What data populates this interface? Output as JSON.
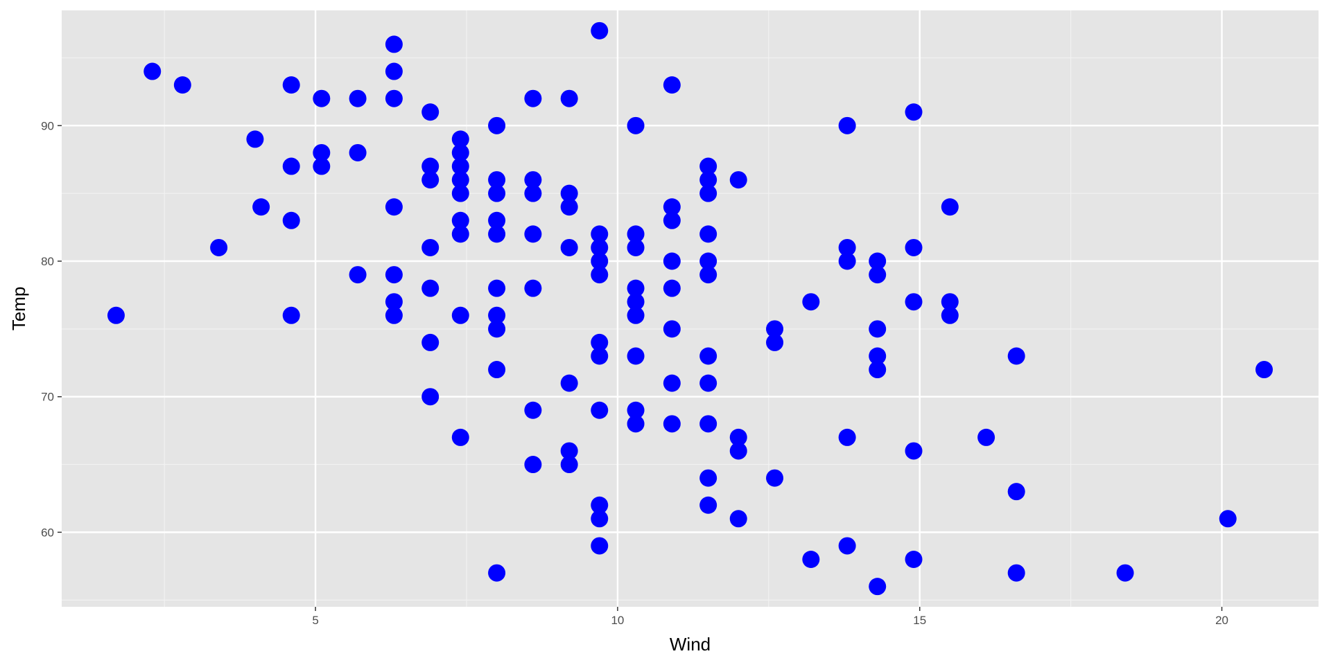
{
  "chart_data": {
    "type": "scatter",
    "title": "",
    "xlabel": "Wind",
    "ylabel": "Temp",
    "xlim": [
      0.8,
      21.6
    ],
    "ylim": [
      54.5,
      98.5
    ],
    "x_ticks": [
      5,
      10,
      15,
      20
    ],
    "y_ticks": [
      60,
      70,
      80,
      90
    ],
    "x_tick_labels": [
      "5",
      "10",
      "15",
      "20"
    ],
    "y_tick_labels": [
      "60",
      "70",
      "80",
      "90"
    ],
    "grid": true,
    "legend": "none",
    "marker_color": "#0000ff",
    "panel_background": "#e5e5e5",
    "points": [
      [
        1.7,
        76
      ],
      [
        2.3,
        94
      ],
      [
        2.8,
        93
      ],
      [
        3.4,
        81
      ],
      [
        4.0,
        89
      ],
      [
        4.1,
        84
      ],
      [
        4.6,
        93
      ],
      [
        4.6,
        87
      ],
      [
        4.6,
        83
      ],
      [
        4.6,
        76
      ],
      [
        5.1,
        92
      ],
      [
        5.1,
        88
      ],
      [
        5.1,
        87
      ],
      [
        5.7,
        92
      ],
      [
        5.7,
        88
      ],
      [
        5.7,
        79
      ],
      [
        6.3,
        96
      ],
      [
        6.3,
        94
      ],
      [
        6.3,
        92
      ],
      [
        6.3,
        84
      ],
      [
        6.3,
        79
      ],
      [
        6.3,
        77
      ],
      [
        6.3,
        76
      ],
      [
        6.9,
        91
      ],
      [
        6.9,
        87
      ],
      [
        6.9,
        86
      ],
      [
        6.9,
        81
      ],
      [
        6.9,
        78
      ],
      [
        6.9,
        74
      ],
      [
        6.9,
        70
      ],
      [
        7.4,
        89
      ],
      [
        7.4,
        88
      ],
      [
        7.4,
        87
      ],
      [
        7.4,
        86
      ],
      [
        7.4,
        85
      ],
      [
        7.4,
        83
      ],
      [
        7.4,
        82
      ],
      [
        7.4,
        76
      ],
      [
        7.4,
        67
      ],
      [
        8.0,
        90
      ],
      [
        8.0,
        86
      ],
      [
        8.0,
        85
      ],
      [
        8.0,
        83
      ],
      [
        8.0,
        82
      ],
      [
        8.0,
        78
      ],
      [
        8.0,
        76
      ],
      [
        8.0,
        75
      ],
      [
        8.0,
        72
      ],
      [
        8.0,
        57
      ],
      [
        8.6,
        92
      ],
      [
        8.6,
        86
      ],
      [
        8.6,
        85
      ],
      [
        8.6,
        82
      ],
      [
        8.6,
        78
      ],
      [
        8.6,
        69
      ],
      [
        8.6,
        65
      ],
      [
        9.2,
        92
      ],
      [
        9.2,
        85
      ],
      [
        9.2,
        84
      ],
      [
        9.2,
        81
      ],
      [
        9.2,
        71
      ],
      [
        9.2,
        66
      ],
      [
        9.2,
        65
      ],
      [
        9.7,
        97
      ],
      [
        9.7,
        82
      ],
      [
        9.7,
        81
      ],
      [
        9.7,
        80
      ],
      [
        9.7,
        79
      ],
      [
        9.7,
        74
      ],
      [
        9.7,
        73
      ],
      [
        9.7,
        69
      ],
      [
        9.7,
        62
      ],
      [
        9.7,
        61
      ],
      [
        9.7,
        59
      ],
      [
        10.3,
        90
      ],
      [
        10.3,
        82
      ],
      [
        10.3,
        81
      ],
      [
        10.3,
        78
      ],
      [
        10.3,
        77
      ],
      [
        10.3,
        76
      ],
      [
        10.3,
        73
      ],
      [
        10.3,
        69
      ],
      [
        10.3,
        68
      ],
      [
        10.9,
        93
      ],
      [
        10.9,
        84
      ],
      [
        10.9,
        83
      ],
      [
        10.9,
        80
      ],
      [
        10.9,
        78
      ],
      [
        10.9,
        75
      ],
      [
        10.9,
        71
      ],
      [
        10.9,
        68
      ],
      [
        11.5,
        87
      ],
      [
        11.5,
        86
      ],
      [
        11.5,
        85
      ],
      [
        11.5,
        82
      ],
      [
        11.5,
        80
      ],
      [
        11.5,
        79
      ],
      [
        11.5,
        73
      ],
      [
        11.5,
        71
      ],
      [
        11.5,
        68
      ],
      [
        11.5,
        64
      ],
      [
        11.5,
        62
      ],
      [
        12.0,
        86
      ],
      [
        12.0,
        67
      ],
      [
        12.0,
        66
      ],
      [
        12.0,
        61
      ],
      [
        12.6,
        75
      ],
      [
        12.6,
        74
      ],
      [
        12.6,
        64
      ],
      [
        13.2,
        77
      ],
      [
        13.2,
        58
      ],
      [
        13.8,
        90
      ],
      [
        13.8,
        81
      ],
      [
        13.8,
        80
      ],
      [
        13.8,
        67
      ],
      [
        13.8,
        59
      ],
      [
        14.3,
        80
      ],
      [
        14.3,
        79
      ],
      [
        14.3,
        75
      ],
      [
        14.3,
        73
      ],
      [
        14.3,
        72
      ],
      [
        14.3,
        56
      ],
      [
        14.9,
        91
      ],
      [
        14.9,
        81
      ],
      [
        14.9,
        77
      ],
      [
        14.9,
        66
      ],
      [
        14.9,
        58
      ],
      [
        15.5,
        84
      ],
      [
        15.5,
        77
      ],
      [
        15.5,
        76
      ],
      [
        16.1,
        67
      ],
      [
        16.6,
        73
      ],
      [
        16.6,
        63
      ],
      [
        16.6,
        57
      ],
      [
        18.4,
        57
      ],
      [
        20.1,
        61
      ],
      [
        20.7,
        72
      ]
    ]
  }
}
